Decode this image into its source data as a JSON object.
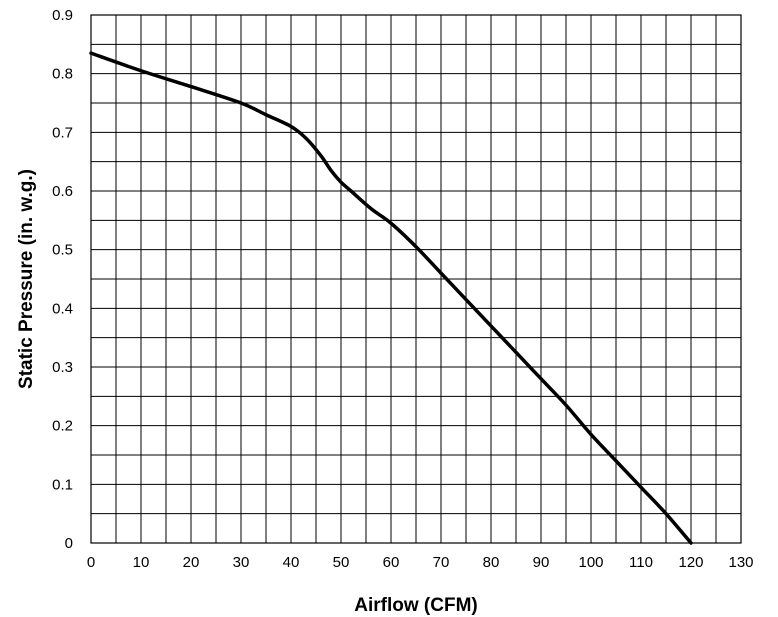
{
  "chart_data": {
    "type": "line",
    "xlabel": "Airflow (CFM)",
    "ylabel": "Static Pressure (in. w.g.)",
    "xlim": [
      0,
      130
    ],
    "ylim": [
      0,
      0.9
    ],
    "x_ticks": [
      0,
      10,
      20,
      30,
      40,
      50,
      60,
      70,
      80,
      90,
      100,
      110,
      120,
      130
    ],
    "y_ticks": [
      0,
      0.1,
      0.2,
      0.3,
      0.4,
      0.5,
      0.6,
      0.7,
      0.8,
      0.9
    ],
    "x_tick_labels": [
      "0",
      "10",
      "20",
      "30",
      "40",
      "50",
      "60",
      "70",
      "80",
      "90",
      "100",
      "110",
      "120",
      "130"
    ],
    "y_tick_labels": [
      "0",
      "0.1",
      "0.2",
      "0.3",
      "0.4",
      "0.5",
      "0.6",
      "0.7",
      "0.8",
      "0.9"
    ],
    "grid": true,
    "grid_x_step": 5,
    "grid_y_step": 0.05,
    "series": [
      {
        "color": "#000000",
        "x": [
          0,
          10,
          20,
          30,
          35,
          40,
          43,
          46,
          48,
          50,
          52,
          56,
          60,
          65,
          70,
          75,
          80,
          85,
          90,
          95,
          100,
          105,
          110,
          115,
          120
        ],
        "y": [
          0.835,
          0.805,
          0.778,
          0.75,
          0.73,
          0.71,
          0.69,
          0.66,
          0.635,
          0.615,
          0.6,
          0.57,
          0.545,
          0.505,
          0.46,
          0.415,
          0.37,
          0.325,
          0.28,
          0.235,
          0.185,
          0.14,
          0.095,
          0.05,
          0.0
        ]
      }
    ]
  }
}
